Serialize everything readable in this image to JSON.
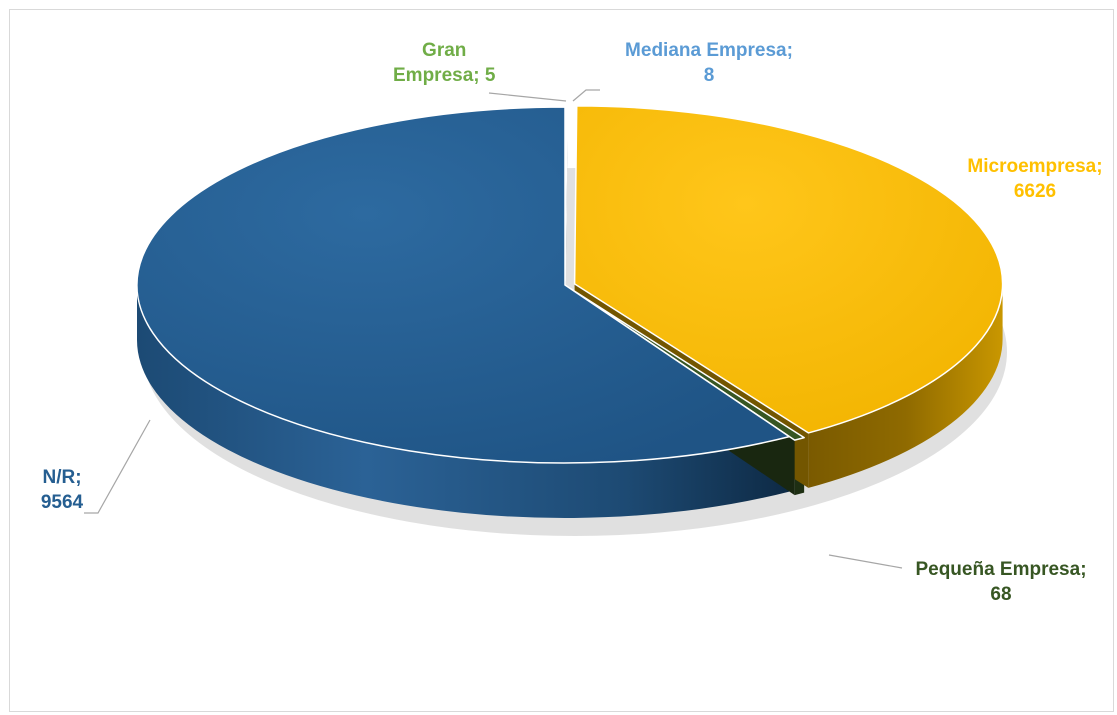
{
  "chart_data": {
    "type": "pie",
    "style": "3d-exploded",
    "title": "",
    "slices": [
      {
        "name": "Gran Empresa",
        "value": 5,
        "color": "#70ad47",
        "label_lines": [
          "Gran",
          "Empresa; 5"
        ]
      },
      {
        "name": "Mediana Empresa",
        "value": 8,
        "color": "#5b9bd5",
        "label_lines": [
          "Mediana Empresa;",
          "8"
        ]
      },
      {
        "name": "Microempresa",
        "value": 6626,
        "color": "#ffc000",
        "label_lines": [
          "Microempresa;",
          "6626"
        ]
      },
      {
        "name": "Pequeña Empresa",
        "value": 68,
        "color": "#375623",
        "label_lines": [
          "Pequeña Empresa;",
          "68"
        ]
      },
      {
        "name": "N/R",
        "value": 9564,
        "color": "#255e91",
        "label_lines": [
          "N/R;",
          "9564"
        ]
      }
    ],
    "legend": "none",
    "data_labels": "category; value"
  }
}
